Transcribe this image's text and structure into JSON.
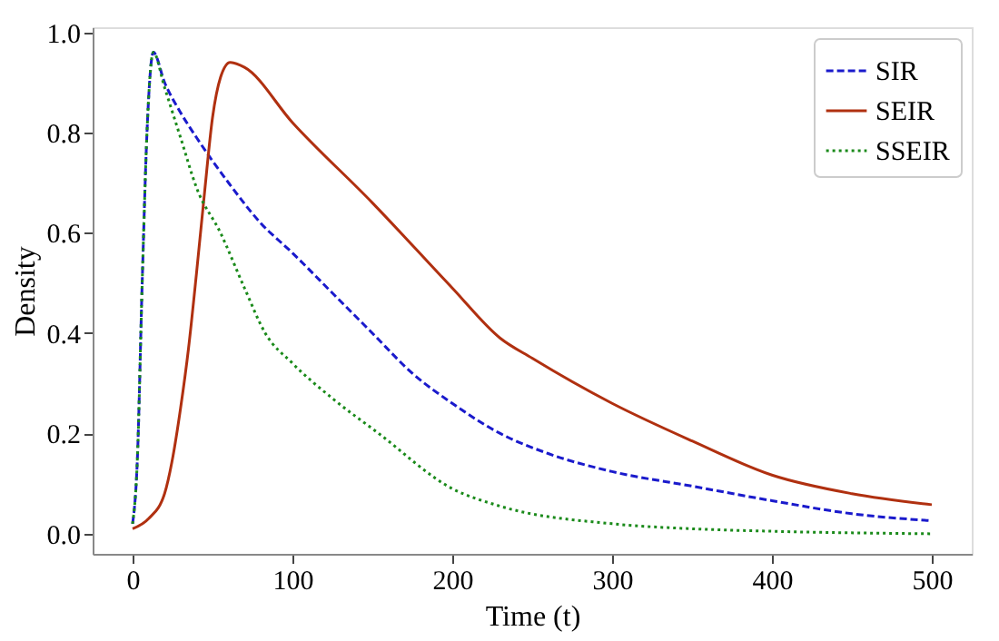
{
  "chart_data": {
    "type": "line",
    "xlabel": "Time (t)",
    "ylabel": "Density",
    "xlim": [
      -25,
      525
    ],
    "ylim": [
      -0.04,
      1.01
    ],
    "xticks": [
      0,
      100,
      200,
      300,
      400,
      500
    ],
    "yticks": [
      {
        "value": 0,
        "label": "0.0"
      },
      {
        "value": 0.2,
        "label": "0.2"
      },
      {
        "value": 0.4,
        "label": "0.4"
      },
      {
        "value": 0.6,
        "label": "0.6"
      },
      {
        "value": 0.8,
        "label": "0.8"
      },
      {
        "value": 1,
        "label": "1.0"
      }
    ],
    "grid": false,
    "legend": "top right",
    "marker": "none",
    "series": [
      {
        "name": "SIR",
        "color": "#1a1acc",
        "line_style": "dashed",
        "x": [
          0,
          3,
          6,
          9,
          13,
          20,
          30,
          40,
          60,
          80,
          100,
          125,
          150,
          175,
          200,
          230,
          260,
          300,
          350,
          400,
          450,
          500
        ],
        "values": [
          0.02,
          0.15,
          0.5,
          0.8,
          0.96,
          0.9,
          0.84,
          0.79,
          0.7,
          0.62,
          0.56,
          0.48,
          0.4,
          0.32,
          0.26,
          0.2,
          0.16,
          0.124,
          0.095,
          0.066,
          0.04,
          0.026
        ]
      },
      {
        "name": "SEIR",
        "color": "#b03010",
        "line_style": "solid",
        "x": [
          0,
          10,
          20,
          25,
          30,
          35,
          40,
          45,
          50,
          55,
          61,
          70,
          100,
          150,
          200,
          230,
          250,
          300,
          350,
          400,
          450,
          500
        ],
        "values": [
          0.01,
          0.03,
          0.08,
          0.15,
          0.25,
          0.37,
          0.52,
          0.68,
          0.83,
          0.91,
          0.94,
          0.93,
          0.82,
          0.66,
          0.49,
          0.39,
          0.35,
          0.26,
          0.185,
          0.117,
          0.08,
          0.058
        ]
      },
      {
        "name": "SSEIR",
        "color": "#1a8a1a",
        "line_style": "dotted",
        "x": [
          0,
          3,
          6,
          9,
          13,
          20,
          30,
          40,
          55,
          70,
          83,
          100,
          125,
          154,
          200,
          230,
          300,
          350,
          400,
          500
        ],
        "values": [
          0.02,
          0.15,
          0.5,
          0.8,
          0.96,
          0.89,
          0.79,
          0.69,
          0.6,
          0.49,
          0.4,
          0.34,
          0.27,
          0.2,
          0.09,
          0.055,
          0.02,
          0.01,
          0.005,
          0.0
        ]
      }
    ]
  }
}
